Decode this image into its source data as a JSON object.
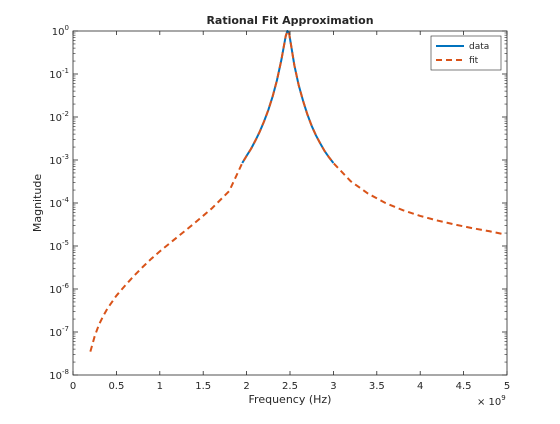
{
  "chart_data": {
    "type": "line",
    "title": "Rational Fit Approximation",
    "xlabel": "Frequency (Hz)",
    "ylabel": "Magnitude",
    "x_scale": "linear",
    "y_scale": "log",
    "x_multiplier_label": "× 10^9",
    "xlim": [
      0,
      5000000000
    ],
    "ylim": [
      1e-08,
      1
    ],
    "x_ticks": [
      0,
      500000000,
      1000000000,
      1500000000,
      2000000000,
      2500000000,
      3000000000,
      3500000000,
      4000000000,
      4500000000,
      5000000000
    ],
    "x_tick_labels": [
      "0",
      "0.5",
      "1",
      "1.5",
      "2",
      "2.5",
      "3",
      "3.5",
      "4",
      "4.5",
      "5"
    ],
    "y_ticks": [
      1e-08,
      1e-07,
      1e-06,
      1e-05,
      0.0001,
      0.001,
      0.01,
      0.1,
      1
    ],
    "y_tick_labels": [
      {
        "base": "10",
        "exp": "-8"
      },
      {
        "base": "10",
        "exp": "-7"
      },
      {
        "base": "10",
        "exp": "-6"
      },
      {
        "base": "10",
        "exp": "-5"
      },
      {
        "base": "10",
        "exp": "-4"
      },
      {
        "base": "10",
        "exp": "-3"
      },
      {
        "base": "10",
        "exp": "-2"
      },
      {
        "base": "10",
        "exp": "-1"
      },
      {
        "base": "10",
        "exp": "0"
      }
    ],
    "grid": false,
    "legend_position": "top-right",
    "series": [
      {
        "name": "data",
        "color": "#0072BD",
        "style": "solid",
        "points": [
          [
            1950000000.0,
            0.00085
          ],
          [
            2000000000.0,
            0.00125
          ],
          [
            2050000000.0,
            0.0018
          ],
          [
            2100000000.0,
            0.0028
          ],
          [
            2150000000.0,
            0.0045
          ],
          [
            2200000000.0,
            0.0078
          ],
          [
            2250000000.0,
            0.0145
          ],
          [
            2300000000.0,
            0.03
          ],
          [
            2350000000.0,
            0.072
          ],
          [
            2400000000.0,
            0.21
          ],
          [
            2430000000.0,
            0.45
          ],
          [
            2450000000.0,
            0.75
          ],
          [
            2470000000.0,
            1.0
          ],
          [
            2490000000.0,
            0.88
          ],
          [
            2510000000.0,
            0.5
          ],
          [
            2550000000.0,
            0.16
          ],
          [
            2600000000.0,
            0.055
          ],
          [
            2650000000.0,
            0.024
          ],
          [
            2700000000.0,
            0.0115
          ],
          [
            2750000000.0,
            0.0062
          ],
          [
            2800000000.0,
            0.0037
          ],
          [
            2850000000.0,
            0.0024
          ],
          [
            2900000000.0,
            0.0016
          ],
          [
            2950000000.0,
            0.00115
          ],
          [
            3000000000.0,
            0.00085
          ]
        ]
      },
      {
        "name": "fit",
        "color": "#D95319",
        "style": "dashed",
        "points": [
          [
            200000000.0,
            3.5e-08
          ],
          [
            250000000.0,
            8e-08
          ],
          [
            300000000.0,
            1.5e-07
          ],
          [
            350000000.0,
            2.4e-07
          ],
          [
            400000000.0,
            3.6e-07
          ],
          [
            500000000.0,
            7e-07
          ],
          [
            600000000.0,
            1.2e-06
          ],
          [
            700000000.0,
            2e-06
          ],
          [
            800000000.0,
            3.2e-06
          ],
          [
            900000000.0,
            5e-06
          ],
          [
            1000000000.0,
            7.5e-06
          ],
          [
            1200000000.0,
            1.6e-05
          ],
          [
            1400000000.0,
            3.4e-05
          ],
          [
            1600000000.0,
            7.5e-05
          ],
          [
            1800000000.0,
            0.00019
          ],
          [
            1950000000.0,
            0.00085
          ],
          [
            2000000000.0,
            0.00125
          ],
          [
            2050000000.0,
            0.0018
          ],
          [
            2100000000.0,
            0.0028
          ],
          [
            2150000000.0,
            0.0045
          ],
          [
            2200000000.0,
            0.0078
          ],
          [
            2250000000.0,
            0.0145
          ],
          [
            2300000000.0,
            0.03
          ],
          [
            2350000000.0,
            0.072
          ],
          [
            2400000000.0,
            0.21
          ],
          [
            2430000000.0,
            0.45
          ],
          [
            2450000000.0,
            0.75
          ],
          [
            2470000000.0,
            1.0
          ],
          [
            2490000000.0,
            0.88
          ],
          [
            2510000000.0,
            0.5
          ],
          [
            2550000000.0,
            0.16
          ],
          [
            2600000000.0,
            0.055
          ],
          [
            2650000000.0,
            0.024
          ],
          [
            2700000000.0,
            0.0115
          ],
          [
            2750000000.0,
            0.0062
          ],
          [
            2800000000.0,
            0.0037
          ],
          [
            2850000000.0,
            0.0024
          ],
          [
            2900000000.0,
            0.0016
          ],
          [
            2950000000.0,
            0.00115
          ],
          [
            3000000000.0,
            0.00085
          ],
          [
            3200000000.0,
            0.00032
          ],
          [
            3400000000.0,
            0.000165
          ],
          [
            3600000000.0,
            0.0001
          ],
          [
            3800000000.0,
            6.8e-05
          ],
          [
            4000000000.0,
            5e-05
          ],
          [
            4200000000.0,
            3.9e-05
          ],
          [
            4400000000.0,
            3.15e-05
          ],
          [
            4600000000.0,
            2.6e-05
          ],
          [
            4800000000.0,
            2.2e-05
          ],
          [
            4950000000.0,
            1.9e-05
          ]
        ]
      }
    ]
  }
}
